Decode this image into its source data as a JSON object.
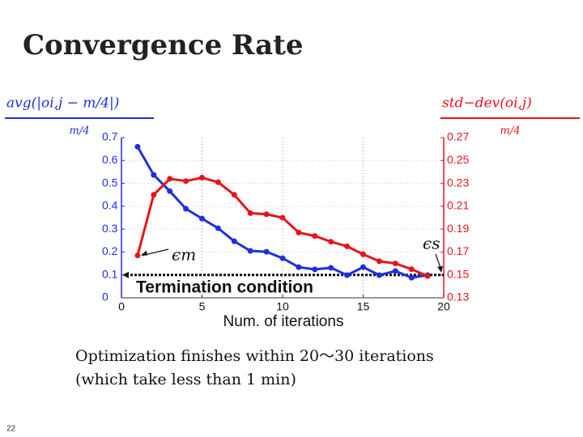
{
  "chart_data": {
    "type": "line",
    "title": "Convergence Rate",
    "x_label": "Num. of iterations",
    "y_label": {
      "numerator": "avg(|oi,j − m/4|)",
      "denominator": "m/4"
    },
    "y2_label": {
      "numerator": "std−dev(oi,j)",
      "denominator": "m/4"
    },
    "x": [
      1,
      2,
      3,
      4,
      5,
      6,
      7,
      8,
      9,
      10,
      11,
      12,
      13,
      14,
      15,
      16,
      17,
      18,
      19
    ],
    "series": [
      {
        "name": "ϵm",
        "color": "#1f2fe0",
        "axis": "y",
        "values": [
          0.66,
          0.537,
          0.466,
          0.389,
          0.346,
          0.304,
          0.247,
          0.205,
          0.201,
          0.173,
          0.134,
          0.124,
          0.131,
          0.099,
          0.134,
          0.099,
          0.117,
          0.088,
          0.099
        ]
      },
      {
        "name": "ϵs",
        "color": "#e8141b",
        "axis": "y2",
        "values": [
          0.167,
          0.22,
          0.234,
          0.232,
          0.235,
          0.231,
          0.22,
          0.204,
          0.203,
          0.2,
          0.187,
          0.184,
          0.179,
          0.175,
          0.168,
          0.162,
          0.16,
          0.155,
          0.149
        ]
      }
    ],
    "threshold": {
      "value": 0.1,
      "label": "Termination condition"
    },
    "xlim": [
      0,
      20
    ],
    "xticks": [
      0,
      5,
      10,
      15,
      20
    ],
    "ylim": [
      0,
      0.7
    ],
    "yticks": [
      0,
      0.1,
      0.2,
      0.3,
      0.4,
      0.5,
      0.6,
      0.7
    ],
    "y2lim": [
      0.13,
      0.27
    ],
    "y2ticks": [
      0.13,
      0.15,
      0.17,
      0.19,
      0.21,
      0.23,
      0.25,
      0.27
    ],
    "grid": true
  },
  "caption": [
    "Optimization finishes within 20～30 iterations",
    "(which take less than 1 min)"
  ],
  "page_number": "22"
}
